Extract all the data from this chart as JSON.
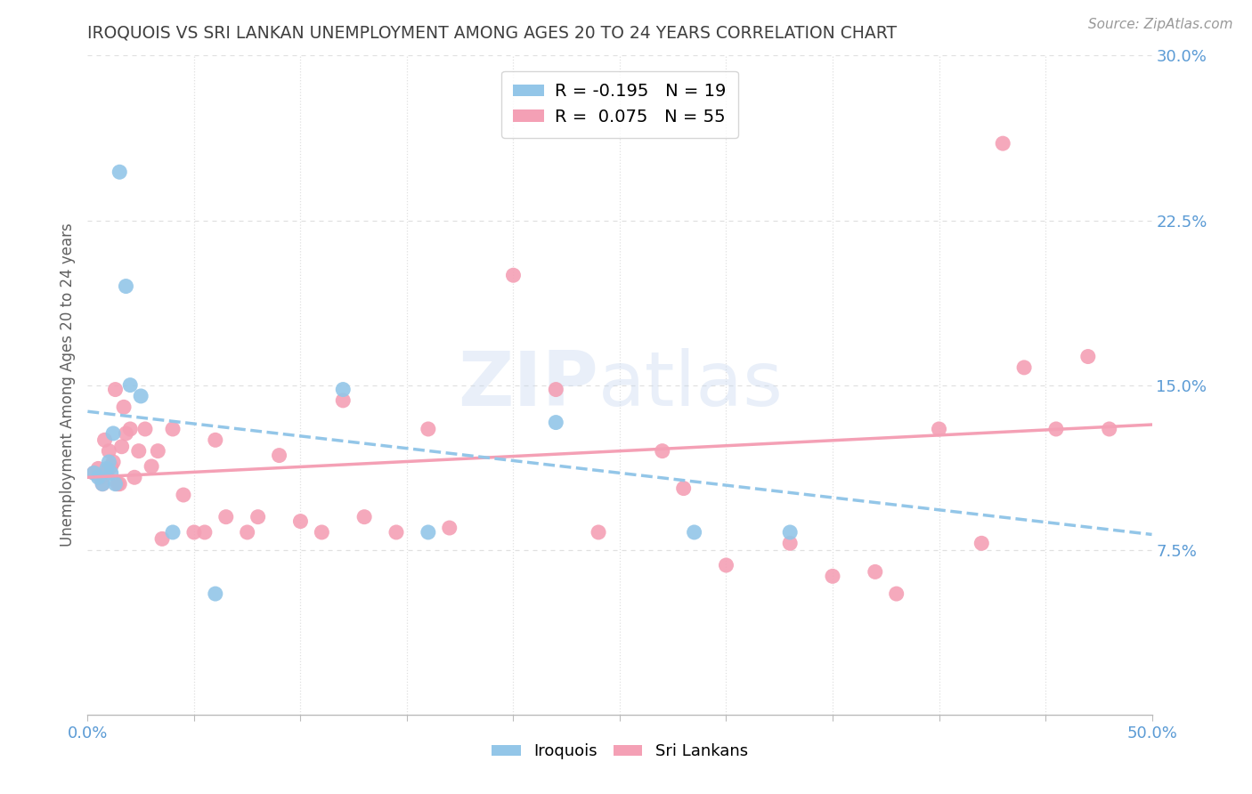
{
  "title": "IROQUOIS VS SRI LANKAN UNEMPLOYMENT AMONG AGES 20 TO 24 YEARS CORRELATION CHART",
  "source": "Source: ZipAtlas.com",
  "ylabel": "Unemployment Among Ages 20 to 24 years",
  "xlim": [
    0.0,
    0.5
  ],
  "ylim": [
    0.0,
    0.3
  ],
  "xticks": [
    0.0,
    0.05,
    0.1,
    0.15,
    0.2,
    0.25,
    0.3,
    0.35,
    0.4,
    0.45,
    0.5
  ],
  "yticks_right": [
    0.0,
    0.075,
    0.15,
    0.225,
    0.3
  ],
  "yticklabels_right": [
    "",
    "7.5%",
    "15.0%",
    "22.5%",
    "30.0%"
  ],
  "iroquois_color": "#93C6E8",
  "sri_lanka_color": "#F4A0B5",
  "iroquois_R": -0.195,
  "iroquois_N": 19,
  "sri_lanka_R": 0.075,
  "sri_lanka_N": 55,
  "iroquois_scatter_x": [
    0.003,
    0.005,
    0.007,
    0.009,
    0.01,
    0.011,
    0.012,
    0.013,
    0.015,
    0.018,
    0.02,
    0.025,
    0.04,
    0.06,
    0.12,
    0.16,
    0.22,
    0.285,
    0.33
  ],
  "iroquois_scatter_y": [
    0.11,
    0.108,
    0.105,
    0.112,
    0.115,
    0.11,
    0.128,
    0.105,
    0.247,
    0.195,
    0.15,
    0.145,
    0.083,
    0.055,
    0.148,
    0.083,
    0.133,
    0.083,
    0.083
  ],
  "sri_lanka_scatter_x": [
    0.003,
    0.005,
    0.006,
    0.007,
    0.008,
    0.009,
    0.01,
    0.011,
    0.012,
    0.013,
    0.014,
    0.015,
    0.016,
    0.017,
    0.018,
    0.02,
    0.022,
    0.024,
    0.027,
    0.03,
    0.033,
    0.035,
    0.04,
    0.045,
    0.05,
    0.055,
    0.06,
    0.065,
    0.075,
    0.08,
    0.09,
    0.1,
    0.11,
    0.12,
    0.13,
    0.145,
    0.16,
    0.17,
    0.2,
    0.22,
    0.24,
    0.27,
    0.28,
    0.3,
    0.33,
    0.35,
    0.37,
    0.38,
    0.4,
    0.42,
    0.43,
    0.44,
    0.455,
    0.47,
    0.48
  ],
  "sri_lanka_scatter_y": [
    0.11,
    0.112,
    0.108,
    0.105,
    0.125,
    0.11,
    0.12,
    0.113,
    0.115,
    0.148,
    0.105,
    0.105,
    0.122,
    0.14,
    0.128,
    0.13,
    0.108,
    0.12,
    0.13,
    0.113,
    0.12,
    0.08,
    0.13,
    0.1,
    0.083,
    0.083,
    0.125,
    0.09,
    0.083,
    0.09,
    0.118,
    0.088,
    0.083,
    0.143,
    0.09,
    0.083,
    0.13,
    0.085,
    0.2,
    0.148,
    0.083,
    0.12,
    0.103,
    0.068,
    0.078,
    0.063,
    0.065,
    0.055,
    0.13,
    0.078,
    0.26,
    0.158,
    0.13,
    0.163,
    0.13
  ],
  "iroquois_trend_y_start": 0.138,
  "iroquois_trend_y_end": 0.082,
  "sri_lanka_trend_y_start": 0.108,
  "sri_lanka_trend_y_end": 0.132,
  "watermark_zip": "ZIP",
  "watermark_atlas": "atlas",
  "background_color": "#ffffff",
  "grid_color": "#e0e0e0",
  "tick_color": "#5B9BD5",
  "title_color": "#404040",
  "axis_label_color": "#606060",
  "legend_label_iroquois": "R = -0.195   N = 19",
  "legend_label_sri": "R =  0.075   N = 55",
  "bottom_legend_iroquois": "Iroquois",
  "bottom_legend_sri": "Sri Lankans"
}
